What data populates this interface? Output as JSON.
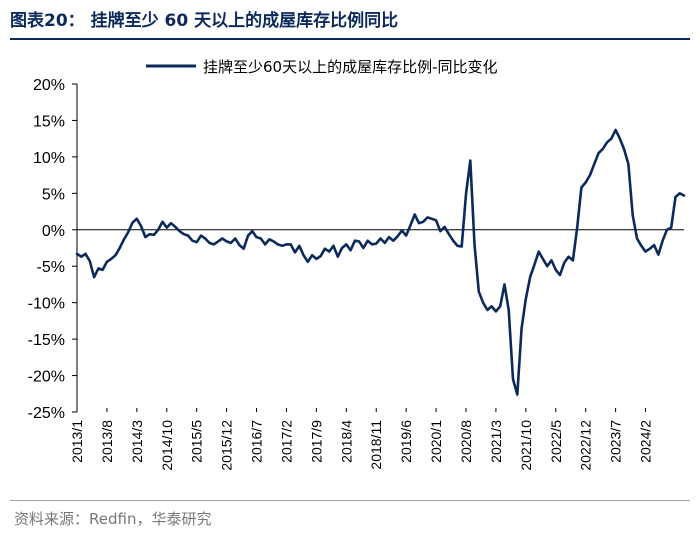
{
  "figure": {
    "title": "图表20：  挂牌至少 60 天以上的成屋库存比例同比",
    "source": "资料来源：Redfin，华泰研究"
  },
  "colors": {
    "line": "#0b2a5b",
    "accent": "#0b2a5b",
    "axis": "#000000"
  },
  "chart_data": {
    "type": "line",
    "title": "",
    "xlabel": "",
    "ylabel": "",
    "legend": "top-center",
    "grid": false,
    "ylim": [
      -25,
      20
    ],
    "yticks": [
      20,
      15,
      10,
      5,
      0,
      -5,
      -10,
      -15,
      -20,
      -25
    ],
    "ytick_labels": [
      "20%",
      "15%",
      "10%",
      "5%",
      "0%",
      "-5%",
      "-10%",
      "-15%",
      "-20%",
      "-25%"
    ],
    "xlim": [
      "2013/1",
      "2024/11"
    ],
    "xtick_labels": [
      "2013/1",
      "2013/8",
      "2014/3",
      "2014/10",
      "2015/5",
      "2015/12",
      "2016/7",
      "2017/2",
      "2017/9",
      "2018/4",
      "2018/11",
      "2019/6",
      "2020/1",
      "2020/8",
      "2021/3",
      "2021/10",
      "2022/5",
      "2022/12",
      "2023/7",
      "2024/2"
    ],
    "series": [
      {
        "name": "挂牌至少60天以上的成屋库存比例-同比变化",
        "x_start": "2013/1",
        "frequency": "monthly",
        "values": [
          -3.3,
          -3.7,
          -3.3,
          -4.3,
          -6.5,
          -5.3,
          -5.5,
          -4.4,
          -4.0,
          -3.5,
          -2.5,
          -1.3,
          -0.3,
          1.0,
          1.5,
          0.5,
          -1.0,
          -0.6,
          -0.7,
          0.0,
          1.1,
          0.3,
          0.9,
          0.4,
          -0.2,
          -0.6,
          -0.8,
          -1.5,
          -1.7,
          -0.8,
          -1.2,
          -1.8,
          -2.0,
          -1.6,
          -1.2,
          -1.6,
          -1.8,
          -1.2,
          -2.1,
          -2.6,
          -0.8,
          -0.2,
          -1.0,
          -1.2,
          -2.0,
          -1.3,
          -1.6,
          -2.0,
          -2.2,
          -2.0,
          -2.0,
          -3.1,
          -2.2,
          -3.5,
          -4.4,
          -3.5,
          -4.0,
          -3.6,
          -2.6,
          -3.0,
          -2.2,
          -3.7,
          -2.5,
          -2.0,
          -2.8,
          -1.5,
          -1.6,
          -2.5,
          -1.5,
          -2.0,
          -1.9,
          -1.2,
          -1.8,
          -1.0,
          -1.5,
          -0.9,
          -0.1,
          -0.8,
          0.6,
          2.1,
          0.9,
          1.1,
          1.7,
          1.5,
          1.3,
          -0.2,
          0.4,
          -0.6,
          -1.5,
          -2.2,
          -2.3,
          4.9,
          9.5,
          -2.0,
          -8.5,
          -10.0,
          -11.0,
          -10.5,
          -11.2,
          -10.5,
          -7.5,
          -11.0,
          -20.5,
          -22.6,
          -13.5,
          -9.5,
          -6.5,
          -4.8,
          -3.0,
          -4.0,
          -5.0,
          -4.2,
          -5.5,
          -6.2,
          -4.5,
          -3.7,
          -4.2,
          0.2,
          5.8,
          6.5,
          7.5,
          9.0,
          10.5,
          11.1,
          12.0,
          12.5,
          13.7,
          12.5,
          11.0,
          9.0,
          2.0,
          -1.2,
          -2.2,
          -3.0,
          -2.6,
          -2.1,
          -3.4,
          -1.5,
          0.0,
          0.3,
          4.5,
          5.0,
          4.7
        ]
      }
    ]
  }
}
